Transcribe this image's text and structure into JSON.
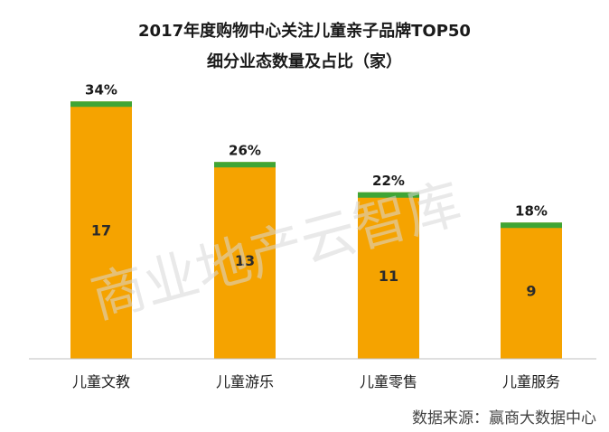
{
  "chart_data": {
    "type": "bar",
    "title": "2017年度购物中心关注儿童亲子品牌TOP50",
    "subtitle": "细分业态数量及占比（家）",
    "categories": [
      "儿童文教",
      "儿童游乐",
      "儿童零售",
      "儿童服务"
    ],
    "values": [
      17,
      13,
      11,
      9
    ],
    "value_labels": [
      "17",
      "13",
      "11",
      "9"
    ],
    "percent_labels": [
      "34%",
      "26%",
      "22%",
      "18%"
    ],
    "ylim": [
      0,
      20
    ],
    "grid": false,
    "legend": "none",
    "colors": {
      "bar": "#F5A300",
      "bar_cap": "#3FA535",
      "axis": "#bfbfbf"
    }
  },
  "watermark": "商业地产云智库",
  "source": "数据来源：赢商大数据中心"
}
